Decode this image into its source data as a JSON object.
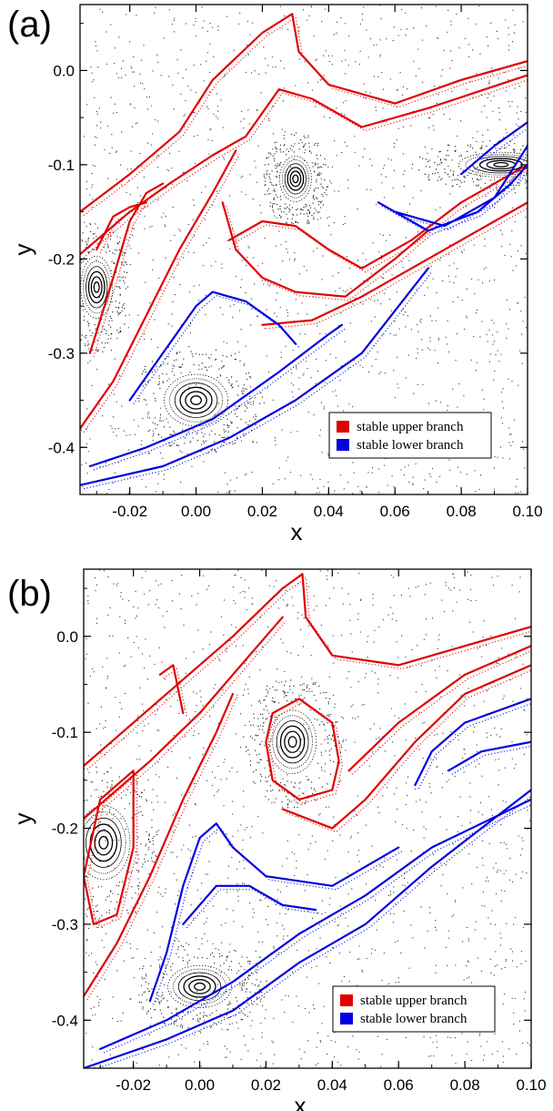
{
  "chart_data": [
    {
      "type": "scatter",
      "panel_label": "(a)",
      "xlabel": "x",
      "ylabel": "y",
      "xlim": [
        -0.035,
        0.1
      ],
      "ylim": [
        -0.45,
        0.07
      ],
      "xticks": [
        "-0.02",
        "0.00",
        "0.02",
        "0.04",
        "0.06",
        "0.08",
        "0.10"
      ],
      "xtick_values": [
        -0.02,
        0.0,
        0.02,
        0.04,
        0.06,
        0.08,
        0.1
      ],
      "yticks": [
        "0.0",
        "-0.1",
        "-0.2",
        "-0.3",
        "-0.4"
      ],
      "ytick_values": [
        0.0,
        -0.1,
        -0.2,
        -0.3,
        -0.4
      ],
      "legend_position": "lower-right",
      "series": [
        {
          "name": "stable upper branch",
          "color": "#e00000",
          "curves": [
            [
              [
                -0.035,
                -0.15
              ],
              [
                -0.02,
                -0.11
              ],
              [
                -0.005,
                -0.065
              ],
              [
                0.005,
                -0.01
              ],
              [
                0.02,
                0.04
              ],
              [
                0.029,
                0.06
              ],
              [
                0.031,
                0.02
              ],
              [
                0.04,
                -0.015
              ],
              [
                0.06,
                -0.035
              ],
              [
                0.08,
                -0.01
              ],
              [
                0.1,
                0.01
              ]
            ],
            [
              [
                -0.035,
                -0.195
              ],
              [
                -0.02,
                -0.15
              ],
              [
                -0.008,
                -0.12
              ],
              [
                0.005,
                -0.09
              ],
              [
                0.015,
                -0.07
              ],
              [
                0.025,
                -0.02
              ],
              [
                0.035,
                -0.03
              ],
              [
                0.05,
                -0.06
              ],
              [
                0.07,
                -0.04
              ],
              [
                0.1,
                -0.005
              ]
            ],
            [
              [
                -0.035,
                -0.38
              ],
              [
                -0.025,
                -0.33
              ],
              [
                -0.015,
                -0.26
              ],
              [
                -0.005,
                -0.19
              ],
              [
                0.005,
                -0.13
              ],
              [
                0.012,
                -0.085
              ]
            ],
            [
              [
                -0.032,
                -0.3
              ],
              [
                -0.025,
                -0.22
              ],
              [
                -0.02,
                -0.16
              ],
              [
                -0.015,
                -0.13
              ],
              [
                -0.01,
                -0.12
              ]
            ],
            [
              [
                0.01,
                -0.18
              ],
              [
                0.02,
                -0.16
              ],
              [
                0.03,
                -0.165
              ],
              [
                0.04,
                -0.19
              ],
              [
                0.05,
                -0.21
              ],
              [
                0.065,
                -0.18
              ],
              [
                0.08,
                -0.14
              ],
              [
                0.1,
                -0.1
              ]
            ],
            [
              [
                0.008,
                -0.14
              ],
              [
                0.012,
                -0.19
              ],
              [
                0.02,
                -0.22
              ],
              [
                0.03,
                -0.235
              ],
              [
                0.045,
                -0.24
              ],
              [
                0.06,
                -0.2
              ],
              [
                0.07,
                -0.17
              ]
            ],
            [
              [
                0.02,
                -0.27
              ],
              [
                0.035,
                -0.265
              ],
              [
                0.05,
                -0.24
              ],
              [
                0.07,
                -0.2
              ],
              [
                0.09,
                -0.16
              ],
              [
                0.1,
                -0.14
              ]
            ],
            [
              [
                -0.03,
                -0.19
              ],
              [
                -0.025,
                -0.155
              ],
              [
                -0.02,
                -0.145
              ],
              [
                -0.015,
                -0.14
              ]
            ]
          ]
        },
        {
          "name": "stable lower branch",
          "color": "#0000e0",
          "curves": [
            [
              [
                -0.035,
                -0.44
              ],
              [
                -0.01,
                -0.42
              ],
              [
                0.01,
                -0.39
              ],
              [
                0.03,
                -0.35
              ],
              [
                0.05,
                -0.3
              ],
              [
                0.07,
                -0.21
              ]
            ],
            [
              [
                -0.032,
                -0.42
              ],
              [
                -0.015,
                -0.4
              ],
              [
                0.005,
                -0.37
              ],
              [
                0.025,
                -0.32
              ],
              [
                0.04,
                -0.28
              ],
              [
                0.044,
                -0.27
              ]
            ],
            [
              [
                -0.02,
                -0.35
              ],
              [
                -0.01,
                -0.3
              ],
              [
                0.0,
                -0.25
              ],
              [
                0.005,
                -0.235
              ],
              [
                0.015,
                -0.245
              ],
              [
                0.025,
                -0.27
              ],
              [
                0.03,
                -0.29
              ]
            ],
            [
              [
                0.055,
                -0.14
              ],
              [
                0.07,
                -0.17
              ],
              [
                0.085,
                -0.15
              ],
              [
                0.095,
                -0.12
              ],
              [
                0.1,
                -0.1
              ]
            ],
            [
              [
                0.06,
                -0.15
              ],
              [
                0.075,
                -0.165
              ],
              [
                0.09,
                -0.135
              ],
              [
                0.1,
                -0.08
              ]
            ],
            [
              [
                0.08,
                -0.11
              ],
              [
                0.09,
                -0.08
              ],
              [
                0.1,
                -0.055
              ]
            ]
          ]
        }
      ],
      "islands": [
        {
          "center": [
            0.03,
            -0.115
          ],
          "rx": 0.003,
          "ry": 0.022
        },
        {
          "center": [
            -0.03,
            -0.23
          ],
          "rx": 0.003,
          "ry": 0.03
        },
        {
          "center": [
            0.0,
            -0.35
          ],
          "rx": 0.006,
          "ry": 0.025
        },
        {
          "center": [
            0.092,
            -0.1
          ],
          "rx": 0.008,
          "ry": 0.012
        }
      ]
    },
    {
      "type": "scatter",
      "panel_label": "(b)",
      "xlabel": "x",
      "ylabel": "y",
      "xlim": [
        -0.035,
        0.1
      ],
      "ylim": [
        -0.45,
        0.07
      ],
      "xticks": [
        "-0.02",
        "0.00",
        "0.02",
        "0.04",
        "0.06",
        "0.08",
        "0.10"
      ],
      "xtick_values": [
        -0.02,
        0.0,
        0.02,
        0.04,
        0.06,
        0.08,
        0.1
      ],
      "yticks": [
        "0.0",
        "-0.1",
        "-0.2",
        "-0.3",
        "-0.4"
      ],
      "ytick_values": [
        0.0,
        -0.1,
        -0.2,
        -0.3,
        -0.4
      ],
      "legend_position": "lower-right",
      "series": [
        {
          "name": "stable upper branch",
          "color": "#e00000",
          "curves": [
            [
              [
                -0.035,
                -0.135
              ],
              [
                -0.02,
                -0.09
              ],
              [
                -0.005,
                -0.045
              ],
              [
                0.01,
                0.0
              ],
              [
                0.025,
                0.05
              ],
              [
                0.031,
                0.065
              ],
              [
                0.032,
                0.02
              ],
              [
                0.04,
                -0.02
              ],
              [
                0.06,
                -0.03
              ],
              [
                0.08,
                -0.01
              ],
              [
                0.1,
                0.01
              ]
            ],
            [
              [
                -0.035,
                -0.19
              ],
              [
                -0.015,
                -0.13
              ],
              [
                0.0,
                -0.08
              ],
              [
                0.015,
                -0.02
              ],
              [
                0.025,
                0.02
              ]
            ],
            [
              [
                -0.035,
                -0.375
              ],
              [
                -0.025,
                -0.32
              ],
              [
                -0.015,
                -0.25
              ],
              [
                -0.005,
                -0.17
              ],
              [
                0.005,
                -0.1
              ],
              [
                0.01,
                -0.06
              ]
            ],
            [
              [
                0.02,
                -0.11
              ],
              [
                0.022,
                -0.08
              ],
              [
                0.03,
                -0.065
              ],
              [
                0.04,
                -0.09
              ],
              [
                0.042,
                -0.13
              ],
              [
                0.04,
                -0.16
              ],
              [
                0.03,
                -0.17
              ],
              [
                0.022,
                -0.15
              ],
              [
                0.02,
                -0.11
              ]
            ],
            [
              [
                0.025,
                -0.18
              ],
              [
                0.04,
                -0.2
              ],
              [
                0.05,
                -0.17
              ],
              [
                0.065,
                -0.11
              ],
              [
                0.08,
                -0.06
              ],
              [
                0.1,
                -0.03
              ]
            ],
            [
              [
                0.045,
                -0.14
              ],
              [
                0.06,
                -0.09
              ],
              [
                0.08,
                -0.04
              ],
              [
                0.1,
                -0.01
              ]
            ],
            [
              [
                -0.032,
                -0.3
              ],
              [
                -0.035,
                -0.25
              ],
              [
                -0.03,
                -0.17
              ],
              [
                -0.02,
                -0.14
              ],
              [
                -0.02,
                -0.22
              ],
              [
                -0.025,
                -0.29
              ],
              [
                -0.032,
                -0.3
              ]
            ],
            [
              [
                -0.012,
                -0.04
              ],
              [
                -0.008,
                -0.03
              ],
              [
                -0.005,
                -0.08
              ]
            ]
          ]
        },
        {
          "name": "stable lower branch",
          "color": "#0000e0",
          "curves": [
            [
              [
                -0.035,
                -0.45
              ],
              [
                -0.01,
                -0.42
              ],
              [
                0.01,
                -0.39
              ],
              [
                0.03,
                -0.34
              ],
              [
                0.05,
                -0.3
              ],
              [
                0.07,
                -0.24
              ],
              [
                0.085,
                -0.2
              ],
              [
                0.1,
                -0.16
              ]
            ],
            [
              [
                -0.03,
                -0.43
              ],
              [
                -0.01,
                -0.4
              ],
              [
                0.01,
                -0.36
              ],
              [
                0.03,
                -0.31
              ],
              [
                0.05,
                -0.27
              ],
              [
                0.07,
                -0.22
              ],
              [
                0.1,
                -0.17
              ]
            ],
            [
              [
                -0.015,
                -0.38
              ],
              [
                -0.01,
                -0.33
              ],
              [
                -0.005,
                -0.26
              ],
              [
                0.0,
                -0.21
              ],
              [
                0.005,
                -0.195
              ],
              [
                0.01,
                -0.22
              ],
              [
                0.02,
                -0.25
              ],
              [
                0.04,
                -0.26
              ],
              [
                0.06,
                -0.22
              ]
            ],
            [
              [
                -0.005,
                -0.3
              ],
              [
                0.005,
                -0.26
              ],
              [
                0.015,
                -0.26
              ],
              [
                0.025,
                -0.28
              ],
              [
                0.035,
                -0.285
              ]
            ],
            [
              [
                0.065,
                -0.155
              ],
              [
                0.07,
                -0.12
              ],
              [
                0.08,
                -0.09
              ],
              [
                0.1,
                -0.065
              ]
            ],
            [
              [
                0.075,
                -0.14
              ],
              [
                0.085,
                -0.12
              ],
              [
                0.1,
                -0.11
              ]
            ]
          ]
        }
      ],
      "islands": [
        {
          "center": [
            0.028,
            -0.11
          ],
          "rx": 0.0045,
          "ry": 0.03
        },
        {
          "center": [
            -0.029,
            -0.215
          ],
          "rx": 0.005,
          "ry": 0.035
        },
        {
          "center": [
            0.0,
            -0.365
          ],
          "rx": 0.006,
          "ry": 0.02
        }
      ]
    }
  ]
}
